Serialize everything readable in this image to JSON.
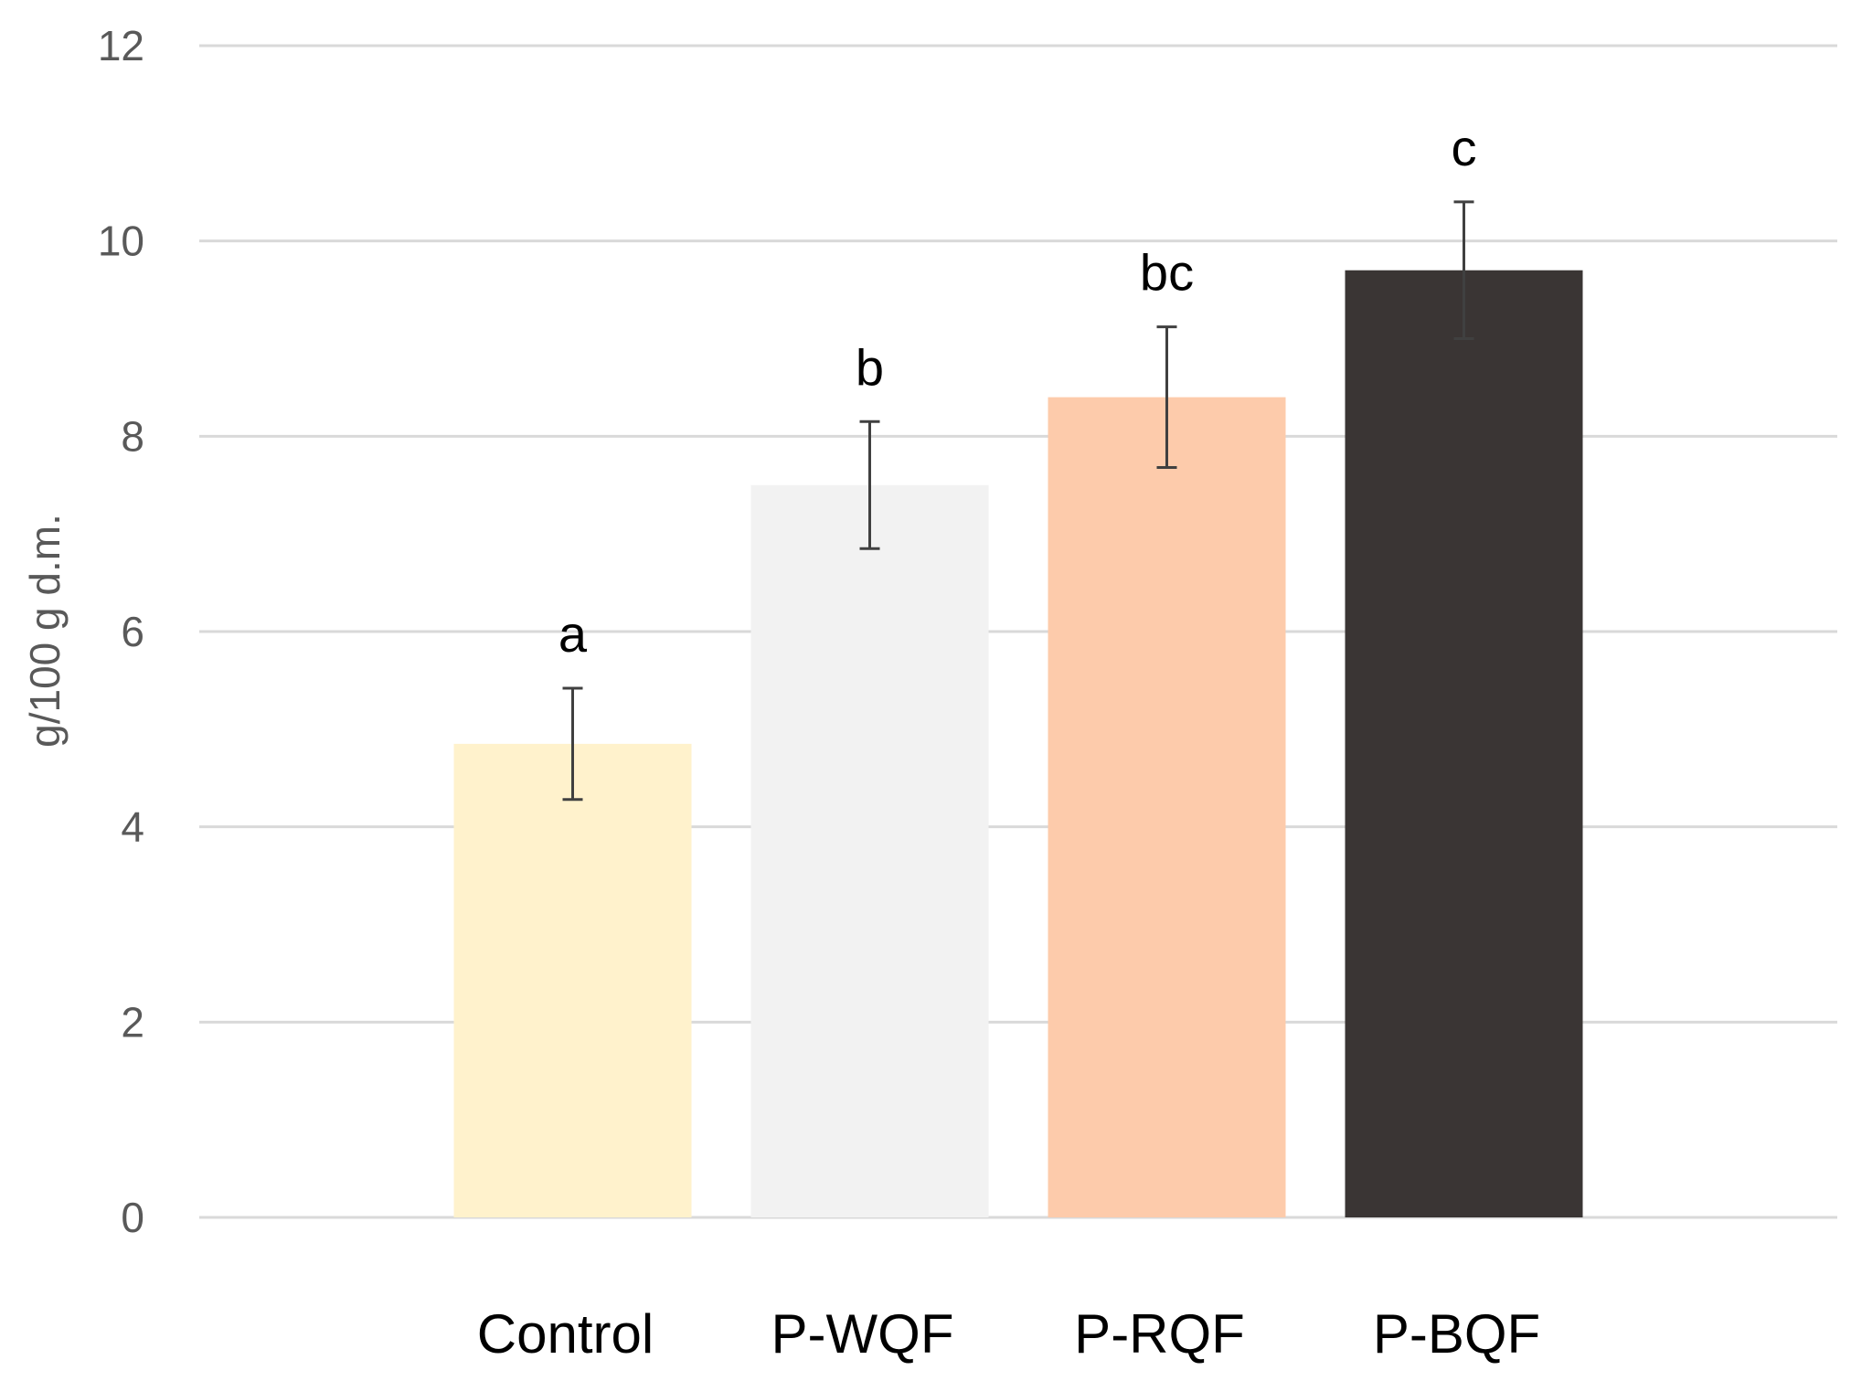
{
  "chart_data": {
    "type": "bar",
    "title": "",
    "xlabel": "",
    "ylabel": "g/100 g d.m.",
    "ylim": [
      0,
      12
    ],
    "yticks": [
      0,
      2,
      4,
      6,
      8,
      10,
      12
    ],
    "grid": "horizontal",
    "legend": "none",
    "categories": [
      "Control",
      "P-WQF",
      "P-RQF",
      "P-BQF"
    ],
    "values": [
      4.85,
      7.5,
      8.4,
      9.7
    ],
    "error": [
      0.57,
      0.65,
      0.72,
      0.7
    ],
    "significance_labels": [
      "a",
      "b",
      "bc",
      "c"
    ],
    "colors": [
      "#fff2cc",
      "#f2f2f2",
      "#fdcbab",
      "#3a3534"
    ]
  }
}
